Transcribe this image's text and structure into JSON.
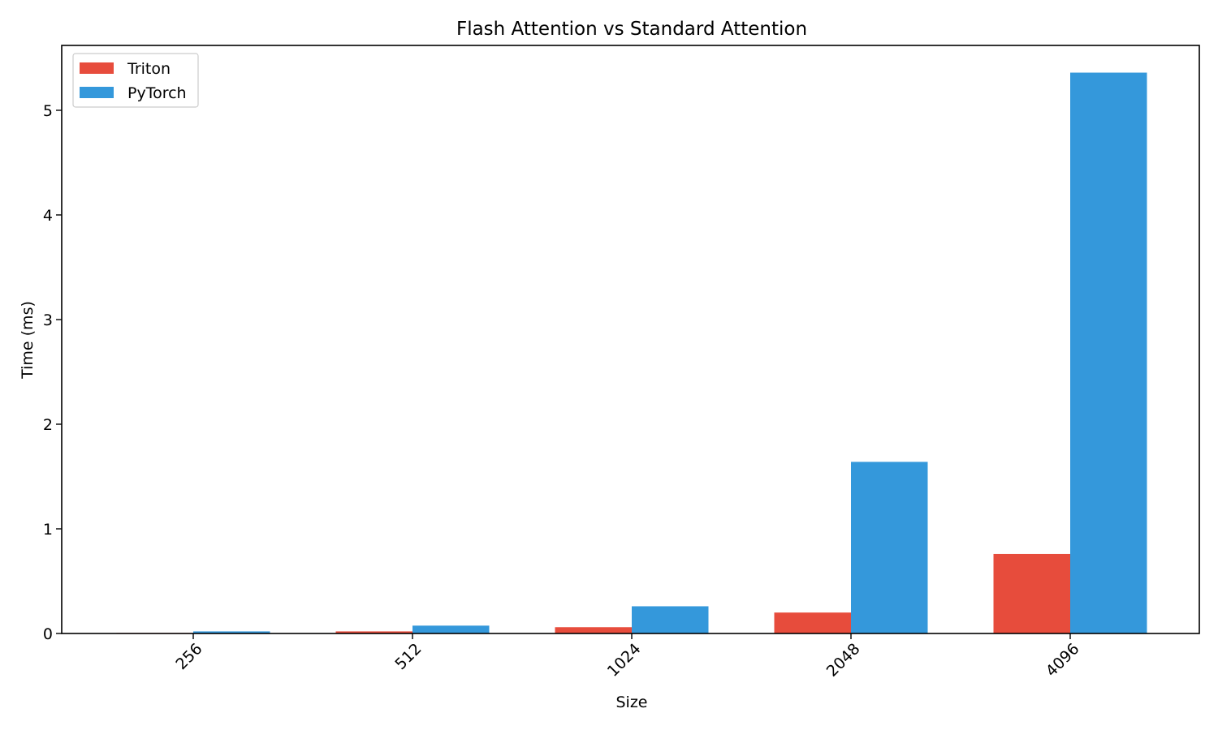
{
  "chart_data": {
    "type": "bar",
    "title": "Flash Attention vs Standard Attention",
    "xlabel": "Size",
    "ylabel": "Time (ms)",
    "categories": [
      "256",
      "512",
      "1024",
      "2048",
      "4096"
    ],
    "series": [
      {
        "name": "Triton",
        "color": "#e74c3c",
        "values": [
          0.005,
          0.02,
          0.06,
          0.2,
          0.76
        ]
      },
      {
        "name": "PyTorch",
        "color": "#3498db",
        "values": [
          0.02,
          0.075,
          0.26,
          1.64,
          5.36
        ]
      }
    ],
    "ylim": [
      0,
      5.62
    ],
    "yticks": [
      0,
      1,
      2,
      3,
      4,
      5
    ],
    "grid": false,
    "legend": "top-left"
  }
}
